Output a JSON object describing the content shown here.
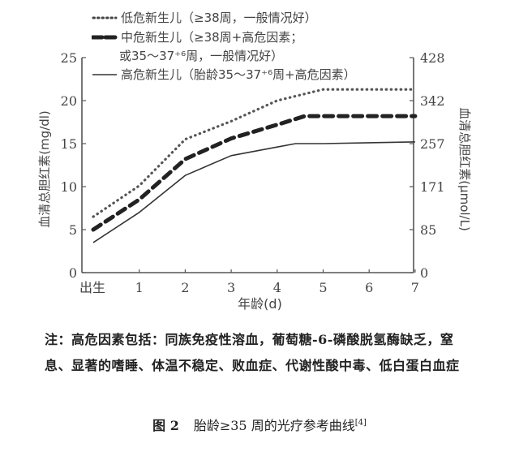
{
  "chart_data": {
    "type": "line",
    "title": "图2 胎龄≥35周的光疗参考曲线[4]",
    "xlabel": "年龄(d)",
    "ylabel": "血清总胆红素(mg/dl)",
    "ylabel_right": "血清总胆红素(μmol/L)",
    "x_ticks": [
      "出生",
      "1",
      "2",
      "3",
      "4",
      "5",
      "6",
      "7"
    ],
    "y_ticks": [
      0,
      5,
      10,
      15,
      20,
      25
    ],
    "y_ticks_right": [
      0,
      85,
      171,
      257,
      342,
      428
    ],
    "ylim": [
      0,
      25
    ],
    "xlim": [
      0,
      7
    ],
    "grid": false,
    "legend_position": "top-left",
    "x": [
      0.0,
      1,
      2,
      3,
      4,
      4.4,
      4.6,
      5,
      6,
      7
    ],
    "series": [
      {
        "name": "低危新生儿（≥38周，一般情况好）",
        "style": "dotted",
        "points": [
          [
            0,
            6.5
          ],
          [
            1,
            10.1
          ],
          [
            2,
            15.5
          ],
          [
            3,
            17.6
          ],
          [
            4,
            20.0
          ],
          [
            5,
            21.3
          ],
          [
            6,
            21.3
          ],
          [
            7,
            21.3
          ]
        ]
      },
      {
        "name": "中危新生儿（≥38周+高危因素；或35～37+6周，一般情况好）",
        "style": "dashed",
        "points": [
          [
            0,
            5.0
          ],
          [
            1,
            8.5
          ],
          [
            2,
            13.2
          ],
          [
            3,
            15.6
          ],
          [
            4,
            17.2
          ],
          [
            4.6,
            18.2
          ],
          [
            5,
            18.2
          ],
          [
            6,
            18.2
          ],
          [
            7,
            18.2
          ]
        ]
      },
      {
        "name": "高危新生儿（胎龄35～37+6周+高危因素）",
        "style": "solid",
        "points": [
          [
            0,
            3.5
          ],
          [
            1,
            7.0
          ],
          [
            2,
            11.3
          ],
          [
            3,
            13.6
          ],
          [
            4,
            14.6
          ],
          [
            4.4,
            15.0
          ],
          [
            5,
            15.0
          ],
          [
            6,
            15.1
          ],
          [
            7,
            15.2
          ]
        ]
      }
    ]
  },
  "legend": {
    "low_risk": "低危新生儿（≥38周，一般情况好）",
    "mid_risk_line1": "中危新生儿（≥38周+高危因素；",
    "mid_risk_line2": "或35～37⁺⁶周，一般情况好）",
    "high_risk": "高危新生儿（胎龄35～37⁺⁶周+高危因素）"
  },
  "axes": {
    "ylabel_left": "血清总胆红素(mg/dl)",
    "ylabel_right": "血清总胆红素(μmol/L)",
    "xlabel": "年龄(d)"
  },
  "note": "注：高危因素包括：同族免疫性溶血，葡萄糖-6-磷酸脱氢酶缺乏，窒息、显著的嗜睡、体温不稳定、败血症、代谢性酸中毒、低白蛋白血症",
  "caption": {
    "fig": "图 2",
    "text": "胎龄≥35 周的光疗参考曲线",
    "ref": "[4]"
  },
  "colors": {
    "line": "#333333",
    "axis": "#555555"
  }
}
